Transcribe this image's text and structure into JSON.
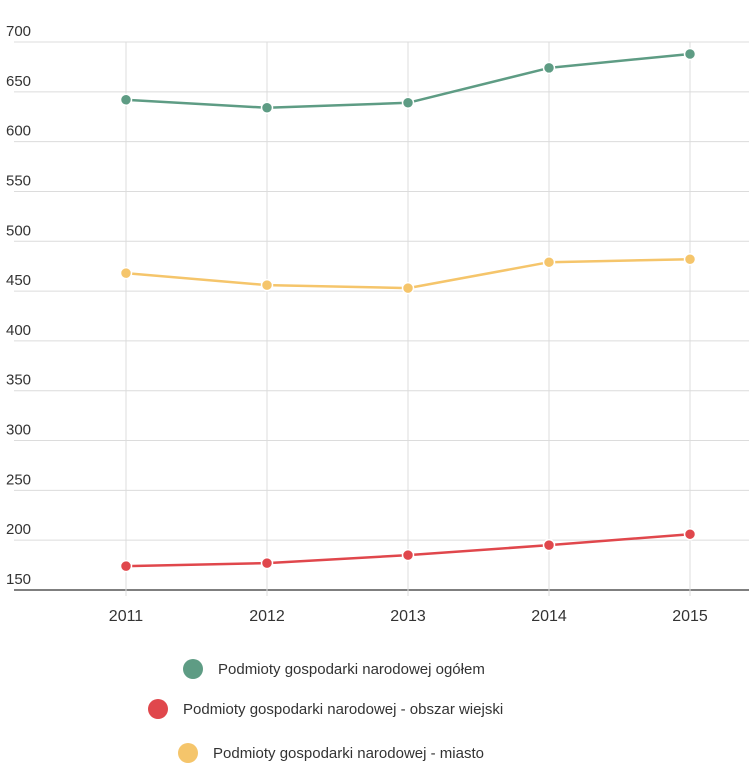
{
  "chart_data": {
    "type": "line",
    "categories": [
      "2011",
      "2012",
      "2013",
      "2014",
      "2015"
    ],
    "series": [
      {
        "name": "Podmioty gospodarki narodowej ogółem",
        "color": "#5e9c84",
        "values": [
          642,
          634,
          639,
          674,
          688
        ]
      },
      {
        "name": "Podmioty gospodarki narodowej - obszar wiejski",
        "color": "#e0474c",
        "values": [
          174,
          177,
          185,
          195,
          206
        ]
      },
      {
        "name": "Podmioty gospodarki narodowej - miasto",
        "color": "#f5c56b",
        "values": [
          468,
          456,
          453,
          479,
          482
        ]
      }
    ],
    "y_ticks": [
      "700",
      "650",
      "600",
      "550",
      "500",
      "450",
      "400",
      "350",
      "300",
      "250",
      "200",
      "150"
    ],
    "ylim": [
      150,
      700
    ],
    "grid": true,
    "legend_position": "bottom",
    "title": "",
    "xlabel": "",
    "ylabel": ""
  }
}
